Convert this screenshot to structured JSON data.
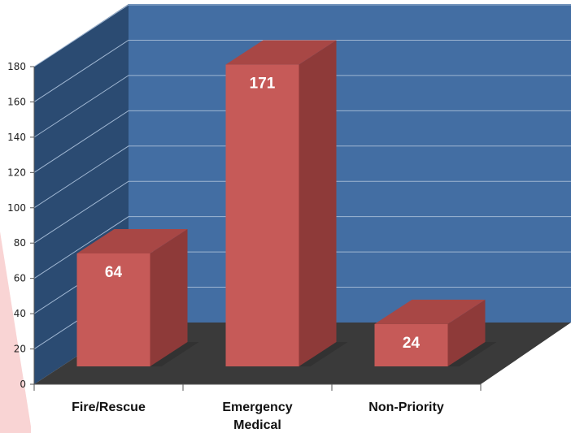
{
  "chart_data": {
    "type": "bar",
    "categories": [
      "Fire/Rescue",
      "Emergency Medical",
      "Non-Priority"
    ],
    "category_lines": [
      [
        "Fire/Rescue"
      ],
      [
        "Emergency",
        "Medical"
      ],
      [
        "Non-Priority"
      ]
    ],
    "values": [
      64,
      171,
      24
    ],
    "data_labels": [
      "64",
      "171",
      "24"
    ],
    "ylim": [
      0,
      180
    ],
    "yticks": [
      0,
      20,
      40,
      60,
      80,
      100,
      120,
      140,
      160,
      180
    ],
    "grid": true,
    "legend": "none",
    "title": "",
    "xlabel": "",
    "ylabel": "",
    "style": "3d-column"
  },
  "colors": {
    "back_wall": "#436ea3",
    "side_wall": "#2b4b72",
    "floor": "#3a3a3a",
    "bar_front": "#c65a58",
    "bar_side": "#8e3a39",
    "bar_top": "#a84745",
    "gridline": "#9fb6d2",
    "decor": "#f9d4d4"
  }
}
